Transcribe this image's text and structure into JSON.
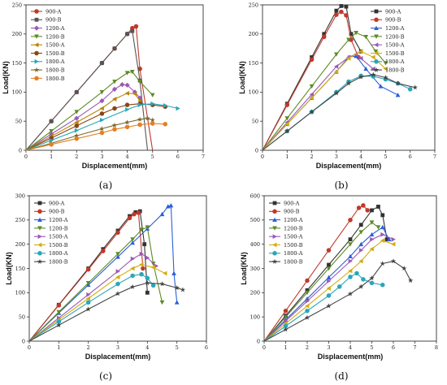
{
  "chart_data": [
    {
      "type": "line",
      "panel_label": "(a)",
      "xlabel": "Displacement(mm)",
      "ylabel": "Load(KN)",
      "xlim": [
        0,
        7
      ],
      "ylim": [
        0,
        250
      ],
      "xticks": [
        0,
        1,
        2,
        3,
        4,
        5,
        6,
        7
      ],
      "yticks": [
        0,
        50,
        100,
        150,
        200,
        250
      ],
      "legend_position": "top-left",
      "series": [
        {
          "name": "900-A",
          "color": "#c0392b",
          "marker": "circle",
          "x": [
            0,
            1,
            2,
            3,
            3.5,
            4,
            4.2,
            4.35,
            4.5,
            5.0
          ],
          "y": [
            0,
            50,
            100,
            150,
            175,
            200,
            210,
            213,
            140,
            0
          ]
        },
        {
          "name": "900-B",
          "color": "#555555",
          "marker": "square",
          "x": [
            0,
            1,
            2,
            3,
            3.5,
            4,
            4.2,
            4.5,
            4.8
          ],
          "y": [
            0,
            50,
            100,
            150,
            175,
            200,
            205,
            120,
            0
          ]
        },
        {
          "name": "1200-A",
          "color": "#9b59b6",
          "marker": "diamond",
          "x": [
            0,
            1,
            2,
            3,
            3.5,
            3.8,
            4.0,
            4.3,
            4.5
          ],
          "y": [
            0,
            28,
            55,
            85,
            105,
            113,
            112,
            100,
            90
          ]
        },
        {
          "name": "1200-B",
          "color": "#5d8a26",
          "marker": "triangle-down",
          "x": [
            0,
            1,
            2,
            3,
            3.5,
            4,
            4.2,
            4.5,
            5.0
          ],
          "y": [
            0,
            33,
            66,
            100,
            118,
            133,
            135,
            118,
            95
          ]
        },
        {
          "name": "1500-A",
          "color": "#b8860b",
          "marker": "triangle-left",
          "x": [
            0,
            1,
            2,
            3,
            3.5,
            4,
            4.3,
            4.5
          ],
          "y": [
            0,
            24,
            48,
            72,
            88,
            98,
            97,
            85
          ]
        },
        {
          "name": "1500-B",
          "color": "#8b4513",
          "marker": "circle",
          "x": [
            0,
            1,
            2,
            3,
            3.5,
            4,
            4.5,
            5,
            5.5
          ],
          "y": [
            0,
            21,
            42,
            63,
            72,
            78,
            80,
            78,
            75
          ]
        },
        {
          "name": "1800-A",
          "color": "#2aa7b8",
          "marker": "triangle-right",
          "x": [
            0,
            1,
            2,
            3,
            4,
            4.5,
            5,
            5.5,
            6
          ],
          "y": [
            0,
            17,
            34,
            52,
            70,
            78,
            80,
            77,
            72
          ]
        },
        {
          "name": "1800-B",
          "color": "#7a6a2a",
          "marker": "star",
          "x": [
            0,
            1,
            2,
            3,
            3.5,
            4,
            4.5,
            4.8,
            5.0
          ],
          "y": [
            0,
            12,
            25,
            37,
            43,
            48,
            53,
            55,
            52
          ]
        },
        {
          "name": "1800-B",
          "color": "#e67e22",
          "marker": "circle",
          "x": [
            0,
            1,
            2,
            3,
            3.5,
            4,
            4.5,
            5,
            5.5
          ],
          "y": [
            0,
            10,
            20,
            30,
            36,
            40,
            44,
            46,
            45
          ]
        }
      ]
    },
    {
      "type": "line",
      "panel_label": "(b)",
      "xlabel": "Displacement(mm)",
      "ylabel": "Load(KN)",
      "xlim": [
        0,
        7
      ],
      "ylim": [
        0,
        250
      ],
      "xticks": [
        0,
        1,
        2,
        3,
        4,
        5,
        6,
        7
      ],
      "yticks": [
        0,
        50,
        100,
        150,
        200,
        250
      ],
      "legend_position": "top-right",
      "series": [
        {
          "name": "900-A",
          "color": "#333333",
          "marker": "square",
          "x": [
            0,
            1,
            2,
            2.5,
            3,
            3.2,
            3.4,
            3.6,
            4.0
          ],
          "y": [
            0,
            80,
            160,
            200,
            240,
            248,
            247,
            200,
            170
          ]
        },
        {
          "name": "900-B",
          "color": "#c0392b",
          "marker": "circle",
          "x": [
            0,
            1,
            2,
            2.5,
            3,
            3.2,
            3.4,
            3.6,
            3.9
          ],
          "y": [
            0,
            78,
            156,
            195,
            233,
            238,
            232,
            190,
            160
          ]
        },
        {
          "name": "1200-A",
          "color": "#2c5fd6",
          "marker": "triangle-up",
          "x": [
            0,
            1,
            2,
            3,
            3.5,
            3.8,
            4.2,
            4.8,
            5.5
          ],
          "y": [
            0,
            45,
            90,
            135,
            160,
            162,
            140,
            110,
            95
          ]
        },
        {
          "name": "1200-B",
          "color": "#5d8a26",
          "marker": "triangle-down",
          "x": [
            0,
            1,
            2,
            3,
            3.5,
            3.8,
            4.2,
            4.6,
            5.0
          ],
          "y": [
            0,
            55,
            110,
            165,
            190,
            202,
            195,
            170,
            150
          ]
        },
        {
          "name": "1500-A",
          "color": "#9b59b6",
          "marker": "triangle-left",
          "x": [
            0,
            1,
            2,
            3,
            3.5,
            3.8,
            4.0,
            4.5
          ],
          "y": [
            0,
            48,
            96,
            144,
            160,
            165,
            158,
            140
          ]
        },
        {
          "name": "1500-B",
          "color": "#d4ac0d",
          "marker": "triangle-left",
          "x": [
            0,
            1,
            2,
            3,
            3.5,
            4,
            4.5,
            5.0
          ],
          "y": [
            0,
            45,
            90,
            135,
            158,
            170,
            160,
            140
          ]
        },
        {
          "name": "1800-A",
          "color": "#2aa7b8",
          "marker": "circle",
          "x": [
            0,
            1,
            2,
            3,
            3.5,
            4,
            4.5,
            5,
            5.5,
            6.0
          ],
          "y": [
            0,
            33,
            66,
            100,
            118,
            128,
            127,
            122,
            115,
            105
          ]
        },
        {
          "name": "1800-B",
          "color": "#444444",
          "marker": "star",
          "x": [
            0,
            1,
            2,
            3,
            3.5,
            4,
            4.5,
            5,
            5.5,
            6.2
          ],
          "y": [
            0,
            33,
            66,
            98,
            115,
            126,
            130,
            125,
            115,
            108
          ]
        }
      ]
    },
    {
      "type": "line",
      "panel_label": "(c)",
      "xlabel": "Displacement(mm)",
      "ylabel": "Load(KN)",
      "xlim": [
        0,
        6
      ],
      "ylim": [
        0,
        300
      ],
      "xticks": [
        0,
        1,
        2,
        3,
        4,
        5,
        6
      ],
      "yticks": [
        0,
        50,
        100,
        150,
        200,
        250,
        300
      ],
      "legend_position": "top-left",
      "series": [
        {
          "name": "900-A",
          "color": "#333333",
          "marker": "square",
          "x": [
            0,
            1,
            2,
            2.5,
            3,
            3.4,
            3.6,
            3.75,
            3.9,
            4.0
          ],
          "y": [
            0,
            75,
            150,
            190,
            228,
            258,
            266,
            268,
            200,
            100
          ]
        },
        {
          "name": "900-B",
          "color": "#c0392b",
          "marker": "circle",
          "x": [
            0,
            1,
            2,
            2.5,
            3,
            3.4,
            3.55,
            3.7,
            3.85
          ],
          "y": [
            0,
            74,
            148,
            186,
            224,
            254,
            262,
            265,
            150
          ]
        },
        {
          "name": "1200-A",
          "color": "#2c5fd6",
          "marker": "triangle-up",
          "x": [
            0,
            1,
            2,
            3,
            3.5,
            4,
            4.5,
            4.7,
            4.8,
            4.9,
            5.0
          ],
          "y": [
            0,
            58,
            116,
            174,
            203,
            232,
            262,
            278,
            280,
            140,
            80
          ]
        },
        {
          "name": "1200-B",
          "color": "#5d8a26",
          "marker": "triangle-down",
          "x": [
            0,
            1,
            2,
            3,
            3.5,
            3.8,
            4.0,
            4.2,
            4.5
          ],
          "y": [
            0,
            60,
            120,
            180,
            210,
            230,
            235,
            160,
            80
          ]
        },
        {
          "name": "1500-A",
          "color": "#9b59b6",
          "marker": "triangle-right",
          "x": [
            0,
            1,
            2,
            3,
            3.5,
            3.8,
            4.0,
            4.3
          ],
          "y": [
            0,
            48,
            96,
            144,
            170,
            180,
            172,
            155
          ]
        },
        {
          "name": "1500-B",
          "color": "#d4ac0d",
          "marker": "triangle-left",
          "x": [
            0,
            1,
            2,
            3,
            3.5,
            3.8,
            4.2,
            4.6
          ],
          "y": [
            0,
            44,
            88,
            132,
            150,
            158,
            152,
            140
          ]
        },
        {
          "name": "1800-A",
          "color": "#2aa7b8",
          "marker": "circle",
          "x": [
            0,
            1,
            2,
            3,
            3.5,
            3.8,
            4.0,
            4.2
          ],
          "y": [
            0,
            40,
            80,
            118,
            135,
            138,
            130,
            115
          ]
        },
        {
          "name": "1800-B",
          "color": "#444444",
          "marker": "star",
          "x": [
            0,
            1,
            2,
            3,
            3.5,
            4,
            4.5,
            5.0,
            5.2
          ],
          "y": [
            0,
            33,
            66,
            98,
            112,
            120,
            118,
            110,
            106
          ]
        }
      ]
    },
    {
      "type": "line",
      "panel_label": "(d)",
      "xlabel": "Displacement(mm)",
      "ylabel": "Load(KN)",
      "xlim": [
        0,
        8
      ],
      "ylim": [
        0,
        600
      ],
      "xticks": [
        0,
        1,
        2,
        3,
        4,
        5,
        6,
        7,
        8
      ],
      "yticks": [
        0,
        100,
        200,
        300,
        400,
        500,
        600
      ],
      "legend_position": "top-left",
      "series": [
        {
          "name": "900-A",
          "color": "#333333",
          "marker": "square",
          "x": [
            0,
            1,
            2,
            3,
            4,
            4.5,
            5.0,
            5.3,
            5.5,
            5.7
          ],
          "y": [
            0,
            105,
            210,
            315,
            420,
            480,
            540,
            555,
            520,
            420
          ]
        },
        {
          "name": "900-B",
          "color": "#c0392b",
          "marker": "circle",
          "x": [
            0,
            1,
            2,
            3,
            4,
            4.4,
            4.6,
            4.8
          ],
          "y": [
            0,
            125,
            250,
            375,
            500,
            550,
            560,
            540
          ]
        },
        {
          "name": "1200-A",
          "color": "#2c5fd6",
          "marker": "triangle-up",
          "x": [
            0,
            1,
            2,
            3,
            4,
            4.5,
            5,
            5.5,
            5.8
          ],
          "y": [
            0,
            88,
            175,
            263,
            350,
            400,
            440,
            470,
            420
          ]
        },
        {
          "name": "1200-B",
          "color": "#5d8a26",
          "marker": "triangle-down",
          "x": [
            0,
            1,
            2,
            3,
            4,
            4.5,
            5.0,
            5.3
          ],
          "y": [
            0,
            100,
            200,
            300,
            400,
            450,
            490,
            470
          ]
        },
        {
          "name": "1500-A",
          "color": "#9b59b6",
          "marker": "triangle-right",
          "x": [
            0,
            1,
            2,
            3,
            4,
            4.5,
            5,
            5.5,
            6.0
          ],
          "y": [
            0,
            83,
            165,
            248,
            330,
            375,
            420,
            440,
            420
          ]
        },
        {
          "name": "1500-B",
          "color": "#d4ac0d",
          "marker": "triangle-left",
          "x": [
            0,
            1,
            2,
            3,
            4,
            4.5,
            5,
            5.5,
            6.0
          ],
          "y": [
            0,
            73,
            145,
            218,
            290,
            330,
            380,
            415,
            400
          ]
        },
        {
          "name": "1800-A",
          "color": "#2aa7b8",
          "marker": "circle",
          "x": [
            0,
            1,
            2,
            3,
            3.5,
            4.0,
            4.3,
            4.6,
            5.0,
            5.5
          ],
          "y": [
            0,
            62,
            125,
            188,
            225,
            265,
            280,
            255,
            240,
            232
          ]
        },
        {
          "name": "1800-B",
          "color": "#444444",
          "marker": "star",
          "x": [
            0,
            1,
            2,
            3,
            4,
            4.5,
            5,
            5.5,
            6,
            6.5,
            6.8
          ],
          "y": [
            0,
            48,
            97,
            145,
            195,
            225,
            260,
            320,
            330,
            300,
            250
          ]
        }
      ]
    }
  ]
}
